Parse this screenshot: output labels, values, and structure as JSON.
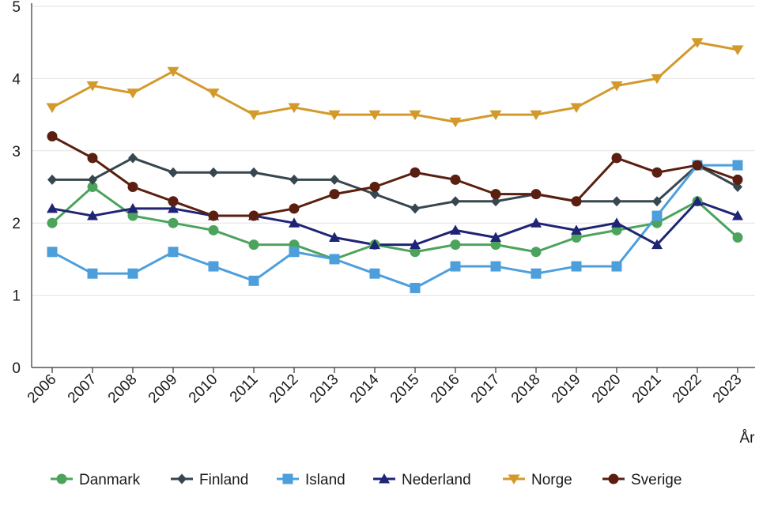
{
  "chart_data": {
    "type": "line",
    "title": "",
    "xlabel": "År",
    "ylabel": "",
    "ylim": [
      0,
      5
    ],
    "yticks": [
      0,
      1,
      2,
      3,
      4,
      5
    ],
    "grid": true,
    "legend_position": "bottom",
    "categories": [
      "2006",
      "2007",
      "2008",
      "2009",
      "2010",
      "2011",
      "2012",
      "2013",
      "2014",
      "2015",
      "2016",
      "2017",
      "2018",
      "2019",
      "2020",
      "2021",
      "2022",
      "2023"
    ],
    "series": [
      {
        "name": "Danmark",
        "color": "#4ca35c",
        "marker": "circle",
        "values": [
          2.0,
          2.5,
          2.1,
          2.0,
          1.9,
          1.7,
          1.7,
          1.5,
          1.7,
          1.6,
          1.7,
          1.7,
          1.6,
          1.8,
          1.9,
          2.0,
          2.3,
          1.8
        ]
      },
      {
        "name": "Finland",
        "color": "#36474f",
        "marker": "diamond",
        "values": [
          2.6,
          2.6,
          2.9,
          2.7,
          2.7,
          2.7,
          2.6,
          2.6,
          2.4,
          2.2,
          2.3,
          2.3,
          2.4,
          2.3,
          2.3,
          2.3,
          2.8,
          2.5
        ]
      },
      {
        "name": "Island",
        "color": "#4d9fdc",
        "marker": "square",
        "values": [
          1.6,
          1.3,
          1.3,
          1.6,
          1.4,
          1.2,
          1.6,
          1.5,
          1.3,
          1.1,
          1.4,
          1.4,
          1.3,
          1.4,
          1.4,
          2.1,
          2.8,
          2.8
        ]
      },
      {
        "name": "Nederland",
        "color": "#1f2475",
        "marker": "triangle-up",
        "values": [
          2.2,
          2.1,
          2.2,
          2.2,
          2.1,
          2.1,
          2.0,
          1.8,
          1.7,
          1.7,
          1.9,
          1.8,
          2.0,
          1.9,
          2.0,
          1.7,
          2.3,
          2.1
        ]
      },
      {
        "name": "Norge",
        "color": "#d39a2b",
        "marker": "triangle-down",
        "values": [
          3.6,
          3.9,
          3.8,
          4.1,
          3.8,
          3.5,
          3.6,
          3.5,
          3.5,
          3.5,
          3.4,
          3.5,
          3.5,
          3.6,
          3.9,
          4.0,
          4.5,
          4.4
        ]
      },
      {
        "name": "Sverige",
        "color": "#5a1f10",
        "marker": "circle",
        "values": [
          3.2,
          2.9,
          2.5,
          2.3,
          2.1,
          2.1,
          2.2,
          2.4,
          2.5,
          2.7,
          2.6,
          2.4,
          2.4,
          2.3,
          2.9,
          2.7,
          2.8,
          2.6
        ]
      }
    ]
  }
}
